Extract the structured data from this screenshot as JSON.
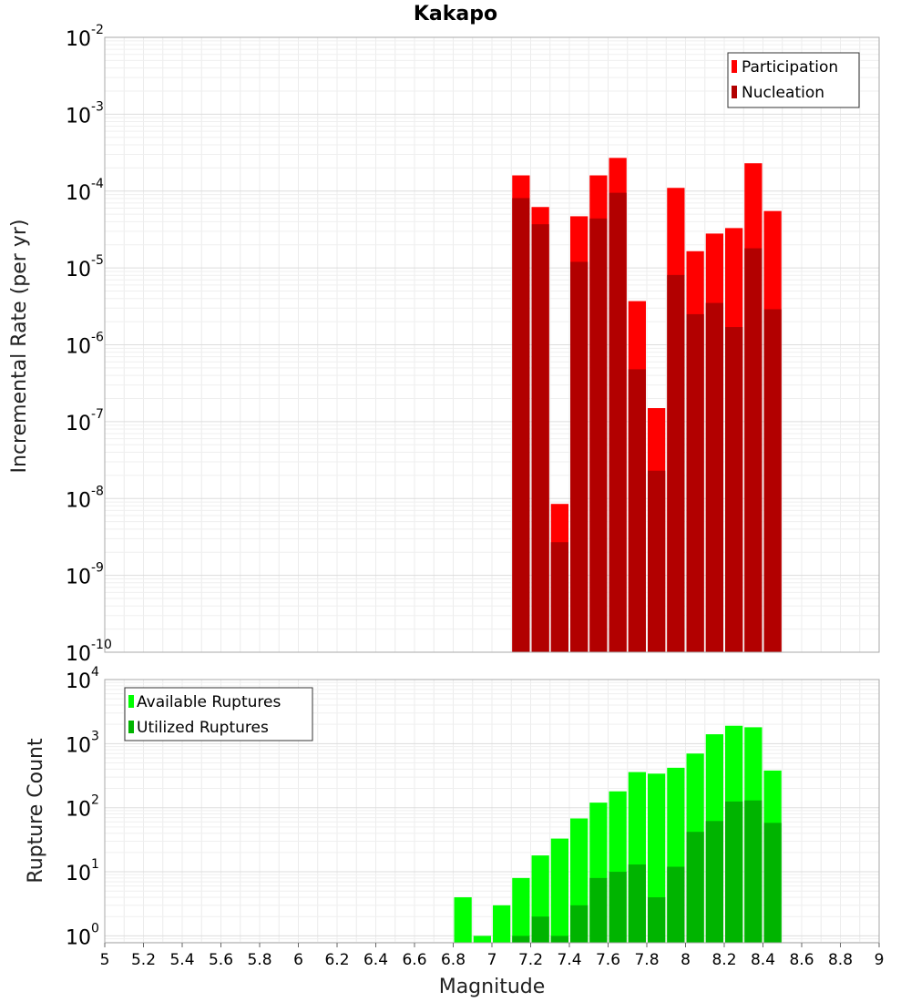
{
  "chart_data": [
    {
      "type": "bar",
      "title": "Kakapo",
      "xlabel": "",
      "ylabel": "Incremental Rate (per yr)",
      "yscale": "log",
      "xlim": [
        5,
        9
      ],
      "ylim": [
        1e-10,
        0.01
      ],
      "y_ticks": [
        {
          "base": "10",
          "exp": "-10",
          "value": 1e-10
        },
        {
          "base": "10",
          "exp": "-9",
          "value": 1e-09
        },
        {
          "base": "10",
          "exp": "-8",
          "value": 1e-08
        },
        {
          "base": "10",
          "exp": "-7",
          "value": 1e-07
        },
        {
          "base": "10",
          "exp": "-6",
          "value": 1e-06
        },
        {
          "base": "10",
          "exp": "-5",
          "value": 1e-05
        },
        {
          "base": "10",
          "exp": "-4",
          "value": 0.0001
        },
        {
          "base": "10",
          "exp": "-3",
          "value": 0.001
        },
        {
          "base": "10",
          "exp": "-2",
          "value": 0.01
        }
      ],
      "grid": true,
      "legend_position": "top-right",
      "x": [
        7.15,
        7.25,
        7.35,
        7.45,
        7.55,
        7.65,
        7.75,
        7.85,
        7.95,
        8.05,
        8.15,
        8.25,
        8.35,
        8.45
      ],
      "series": [
        {
          "name": "Participation",
          "color": "#ff0000",
          "values": [
            0.00016,
            6.2e-05,
            8.5e-09,
            4.7e-05,
            0.00016,
            0.00027,
            3.7e-06,
            1.5e-07,
            0.00011,
            1.65e-05,
            2.8e-05,
            3.3e-05,
            0.00023,
            5.5e-05
          ]
        },
        {
          "name": "Nucleation",
          "color": "#b20000",
          "values": [
            8.1e-05,
            3.7e-05,
            2.7e-09,
            1.2e-05,
            4.4e-05,
            9.5e-05,
            4.8e-07,
            2.3e-08,
            8.1e-06,
            2.5e-06,
            3.5e-06,
            1.7e-06,
            1.8e-05,
            2.9e-06
          ]
        }
      ]
    },
    {
      "type": "bar",
      "title": "",
      "xlabel": "Magnitude",
      "ylabel": "Rupture Count",
      "yscale": "log",
      "xlim": [
        5,
        9
      ],
      "ylim": [
        0.78,
        10000
      ],
      "x_ticks": [
        "5",
        "5.2",
        "5.4",
        "5.6",
        "5.8",
        "6",
        "6.2",
        "6.4",
        "6.6",
        "6.8",
        "7",
        "7.2",
        "7.4",
        "7.6",
        "7.8",
        "8",
        "8.2",
        "8.4",
        "8.6",
        "8.8",
        "9"
      ],
      "y_ticks": [
        {
          "base": "10",
          "exp": "0",
          "value": 1
        },
        {
          "base": "10",
          "exp": "1",
          "value": 10
        },
        {
          "base": "10",
          "exp": "2",
          "value": 100
        },
        {
          "base": "10",
          "exp": "3",
          "value": 1000
        },
        {
          "base": "10",
          "exp": "4",
          "value": 10000
        }
      ],
      "grid": true,
      "legend_position": "top-left",
      "x": [
        6.85,
        6.95,
        7.05,
        7.15,
        7.25,
        7.35,
        7.45,
        7.55,
        7.65,
        7.75,
        7.85,
        7.95,
        8.05,
        8.15,
        8.25,
        8.35,
        8.45
      ],
      "series": [
        {
          "name": "Available Ruptures",
          "color": "#00ff00",
          "values": [
            4,
            1,
            3,
            8,
            18,
            33,
            68,
            120,
            180,
            360,
            340,
            420,
            700,
            1400,
            1900,
            1800,
            380
          ]
        },
        {
          "name": "Utilized Ruptures",
          "color": "#00b400",
          "values": [
            0,
            0,
            0,
            1,
            2,
            1,
            3,
            8,
            10,
            13,
            4,
            12,
            42,
            62,
            125,
            130,
            58
          ]
        }
      ]
    }
  ]
}
